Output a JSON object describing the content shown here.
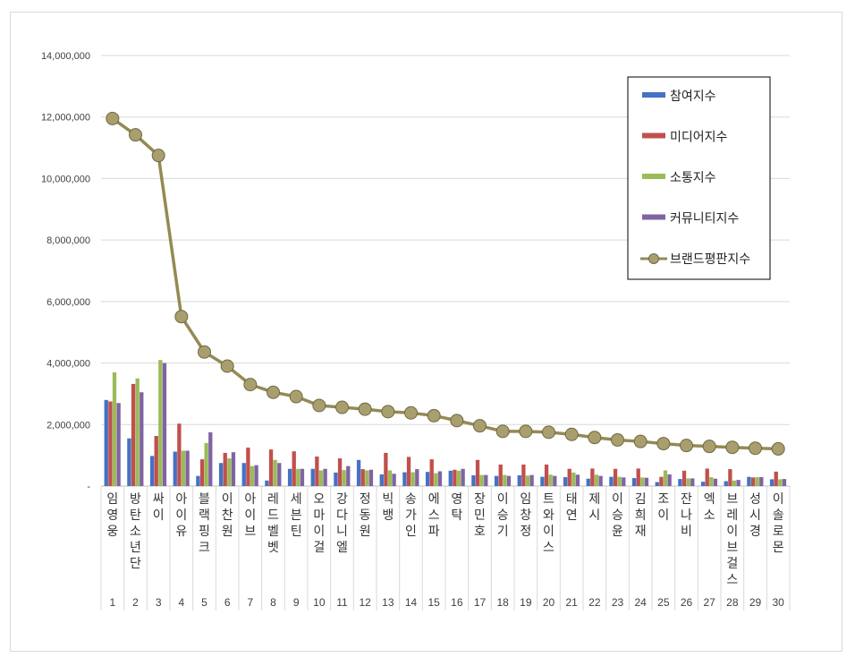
{
  "chart_data": {
    "type": "bar",
    "categories": [
      "임영웅",
      "방탄소년단",
      "싸이",
      "아이유",
      "블랙핑크",
      "이찬원",
      "아이브",
      "레드벨벳",
      "세븐틴",
      "오마이걸",
      "강다니엘",
      "정동원",
      "빅뱅",
      "송가인",
      "에스파",
      "영탁",
      "장민호",
      "이승기",
      "임창정",
      "트와이스",
      "태연",
      "제시",
      "이승윤",
      "김희재",
      "조이",
      "잔나비",
      "엑소",
      "브레이브걸스",
      "성시경",
      "이솔로몬"
    ],
    "ranks": [
      "1",
      "2",
      "3",
      "4",
      "5",
      "6",
      "7",
      "8",
      "9",
      "10",
      "11",
      "12",
      "13",
      "14",
      "15",
      "16",
      "17",
      "18",
      "19",
      "20",
      "21",
      "22",
      "23",
      "24",
      "25",
      "26",
      "27",
      "28",
      "29",
      "30"
    ],
    "series": [
      {
        "name": "참여지수",
        "color": "#4472c4",
        "type": "bar",
        "values": [
          2800000,
          1550000,
          980000,
          1120000,
          330000,
          750000,
          750000,
          180000,
          560000,
          560000,
          440000,
          850000,
          380000,
          450000,
          460000,
          500000,
          350000,
          330000,
          350000,
          300000,
          290000,
          240000,
          300000,
          260000,
          130000,
          230000,
          140000,
          160000,
          300000,
          220000
        ]
      },
      {
        "name": "미디어지수",
        "color": "#c0504d",
        "type": "bar",
        "values": [
          2750000,
          3320000,
          1630000,
          2030000,
          870000,
          1080000,
          1250000,
          1190000,
          1130000,
          960000,
          900000,
          550000,
          1080000,
          950000,
          870000,
          530000,
          850000,
          700000,
          700000,
          700000,
          560000,
          570000,
          560000,
          570000,
          300000,
          500000,
          570000,
          550000,
          280000,
          470000
        ]
      },
      {
        "name": "소통지수",
        "color": "#9bbb59",
        "type": "bar",
        "values": [
          3700000,
          3500000,
          4100000,
          1150000,
          1400000,
          900000,
          650000,
          850000,
          560000,
          510000,
          520000,
          510000,
          510000,
          450000,
          420000,
          500000,
          360000,
          360000,
          340000,
          370000,
          440000,
          370000,
          300000,
          280000,
          510000,
          250000,
          290000,
          180000,
          290000,
          220000
        ]
      },
      {
        "name": "커뮤니티지수",
        "color": "#8064a2",
        "type": "bar",
        "values": [
          2700000,
          3050000,
          4000000,
          1150000,
          1750000,
          1100000,
          680000,
          750000,
          560000,
          560000,
          650000,
          530000,
          400000,
          550000,
          480000,
          560000,
          360000,
          330000,
          360000,
          330000,
          370000,
          330000,
          280000,
          270000,
          380000,
          250000,
          240000,
          200000,
          290000,
          230000
        ]
      },
      {
        "name": "브랜드평판지수",
        "color": "#948a54",
        "type": "line",
        "values": [
          11950000,
          11420000,
          10750000,
          5510000,
          4360000,
          3900000,
          3300000,
          3050000,
          2910000,
          2620000,
          2560000,
          2500000,
          2420000,
          2380000,
          2290000,
          2130000,
          1960000,
          1780000,
          1780000,
          1750000,
          1680000,
          1580000,
          1500000,
          1450000,
          1380000,
          1320000,
          1290000,
          1260000,
          1230000,
          1210000
        ]
      }
    ],
    "yticks": [
      "-",
      "2,000,000",
      "4,000,000",
      "6,000,000",
      "8,000,000",
      "10,000,000",
      "12,000,000",
      "14,000,000"
    ],
    "ylim": [
      0,
      14000000
    ],
    "grid": true,
    "legend": "top-right",
    "title": "",
    "xlabel": "",
    "ylabel": ""
  }
}
